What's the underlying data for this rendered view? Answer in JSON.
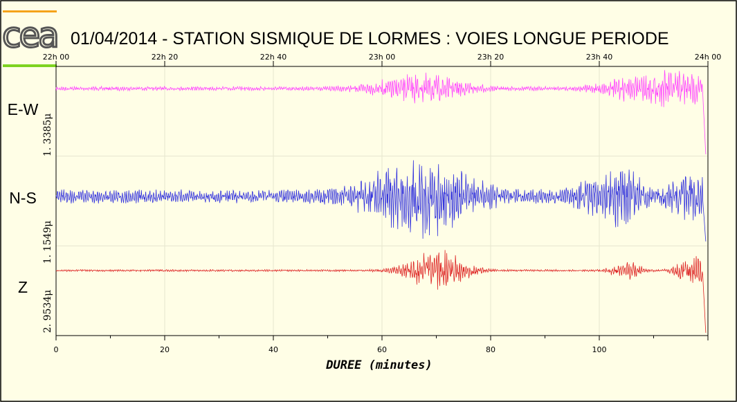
{
  "title": "01/04/2014  -  STATION SISMIQUE DE LORMES : VOIES LONGUE PERIODE",
  "logo": {
    "text": "cea",
    "bar_top_color": "#f5a31a",
    "bar_bottom_color": "#7ed321"
  },
  "chart_data": {
    "type": "line",
    "xlabel": "DUREE (minutes)",
    "xlim": [
      0,
      120
    ],
    "x_ticks": [
      "0",
      "20",
      "40",
      "60",
      "80",
      "100"
    ],
    "top_time_ticks": [
      "22h 00",
      "22h 20",
      "22h 40",
      "23h 00",
      "23h 20",
      "23h 40",
      "24h 00"
    ],
    "grid": true,
    "channels": [
      {
        "name": "E-W",
        "scale": "1. 3385μ",
        "color": "#ff44ff",
        "bursts": [
          [
            67,
            6,
            4
          ],
          [
            99,
            2,
            0.6
          ],
          [
            104,
            2,
            1.6
          ],
          [
            114,
            6,
            5.0
          ]
        ]
      },
      {
        "name": "N-S",
        "scale": "1. 1549μ",
        "color": "#3333dd",
        "bursts": [
          [
            67,
            7,
            3.2
          ],
          [
            100,
            3,
            1.4
          ],
          [
            105,
            2,
            2.2
          ],
          [
            117,
            3,
            1.8
          ]
        ]
      },
      {
        "name": "Z",
        "scale": "2. 9534μ",
        "color": "#dd2222",
        "bursts": [
          [
            70,
            4,
            4
          ],
          [
            105,
            2,
            1.8
          ],
          [
            117,
            2,
            3.0
          ]
        ]
      }
    ]
  }
}
